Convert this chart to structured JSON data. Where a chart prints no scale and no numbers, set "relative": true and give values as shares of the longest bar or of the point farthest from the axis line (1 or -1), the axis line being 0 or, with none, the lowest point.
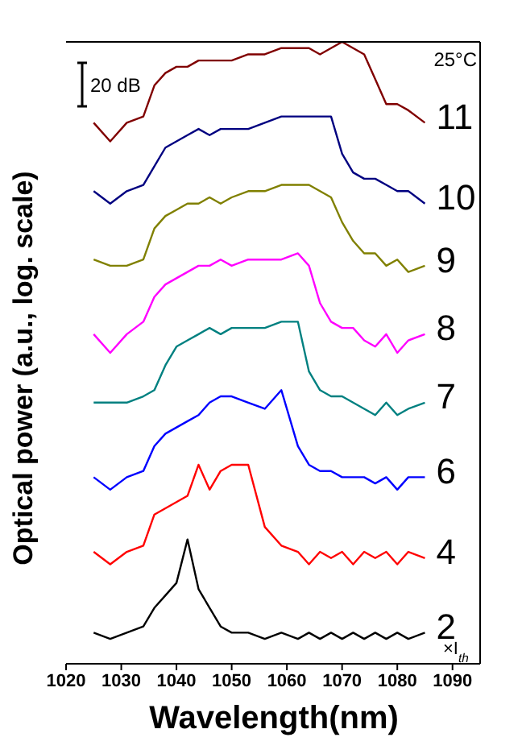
{
  "chart_data": {
    "type": "line",
    "xlabel": "Wavelength(nm)",
    "ylabel": "Optical power (a.u., log. scale)",
    "relative": true,
    "marker": "none",
    "legend": false,
    "annotations": [
      "20 dB",
      "25°C",
      "×I$_{th}$"
    ],
    "x": [
      1025,
      1028,
      1031,
      1034,
      1036,
      1038,
      1040,
      1042,
      1044,
      1046,
      1048,
      1050,
      1053,
      1056,
      1059,
      1062,
      1064,
      1066,
      1068,
      1070,
      1072,
      1074,
      1076,
      1078,
      1080,
      1082,
      1085
    ],
    "xlim": [
      1020,
      1095
    ],
    "xticks": [
      1020,
      1030,
      1040,
      1050,
      1060,
      1070,
      1080,
      1090
    ],
    "series": [
      {
        "name": "11",
        "color": "#800000",
        "values": [
          0.87,
          0.84,
          0.87,
          0.88,
          0.93,
          0.95,
          0.96,
          0.96,
          0.97,
          0.97,
          0.97,
          0.97,
          0.98,
          0.98,
          0.99,
          0.99,
          0.99,
          0.98,
          0.99,
          1,
          0.99,
          0.98,
          0.94,
          0.9,
          0.9,
          0.89,
          0.87
        ]
      },
      {
        "name": "10",
        "color": "#000080",
        "values": [
          0.76,
          0.74,
          0.76,
          0.77,
          0.8,
          0.83,
          0.84,
          0.85,
          0.86,
          0.85,
          0.86,
          0.86,
          0.86,
          0.87,
          0.88,
          0.88,
          0.88,
          0.88,
          0.88,
          0.82,
          0.79,
          0.78,
          0.78,
          0.77,
          0.76,
          0.76,
          0.74
        ]
      },
      {
        "name": "9",
        "color": "#808000",
        "values": [
          0.65,
          0.64,
          0.64,
          0.65,
          0.7,
          0.72,
          0.73,
          0.74,
          0.74,
          0.75,
          0.74,
          0.75,
          0.76,
          0.76,
          0.77,
          0.77,
          0.77,
          0.76,
          0.75,
          0.71,
          0.68,
          0.66,
          0.66,
          0.64,
          0.65,
          0.63,
          0.64
        ]
      },
      {
        "name": "8",
        "color": "#ff00ff",
        "values": [
          0.53,
          0.5,
          0.53,
          0.55,
          0.59,
          0.61,
          0.62,
          0.63,
          0.64,
          0.64,
          0.65,
          0.64,
          0.65,
          0.65,
          0.65,
          0.66,
          0.64,
          0.58,
          0.55,
          0.54,
          0.54,
          0.52,
          0.51,
          0.53,
          0.5,
          0.52,
          0.53
        ]
      },
      {
        "name": "7",
        "color": "#008080",
        "values": [
          0.42,
          0.42,
          0.42,
          0.43,
          0.44,
          0.48,
          0.51,
          0.52,
          0.53,
          0.54,
          0.53,
          0.54,
          0.54,
          0.54,
          0.55,
          0.55,
          0.47,
          0.44,
          0.43,
          0.43,
          0.42,
          0.41,
          0.4,
          0.42,
          0.4,
          0.41,
          0.42
        ]
      },
      {
        "name": "6",
        "color": "#0000ff",
        "values": [
          0.3,
          0.28,
          0.3,
          0.31,
          0.35,
          0.37,
          0.38,
          0.39,
          0.4,
          0.42,
          0.43,
          0.43,
          0.42,
          0.41,
          0.44,
          0.35,
          0.32,
          0.31,
          0.31,
          0.3,
          0.3,
          0.3,
          0.29,
          0.3,
          0.28,
          0.3,
          0.3
        ]
      },
      {
        "name": "4",
        "color": "#ff0000",
        "values": [
          0.18,
          0.16,
          0.18,
          0.19,
          0.24,
          0.25,
          0.26,
          0.27,
          0.32,
          0.28,
          0.31,
          0.32,
          0.32,
          0.22,
          0.19,
          0.18,
          0.16,
          0.18,
          0.17,
          0.18,
          0.16,
          0.18,
          0.17,
          0.18,
          0.16,
          0.18,
          0.17
        ]
      },
      {
        "name": "2",
        "color": "#000000",
        "values": [
          0.05,
          0.04,
          0.05,
          0.06,
          0.09,
          0.11,
          0.13,
          0.2,
          0.12,
          0.09,
          0.06,
          0.05,
          0.05,
          0.04,
          0.05,
          0.04,
          0.05,
          0.04,
          0.05,
          0.04,
          0.05,
          0.04,
          0.05,
          0.04,
          0.05,
          0.04,
          0.05
        ]
      }
    ]
  }
}
